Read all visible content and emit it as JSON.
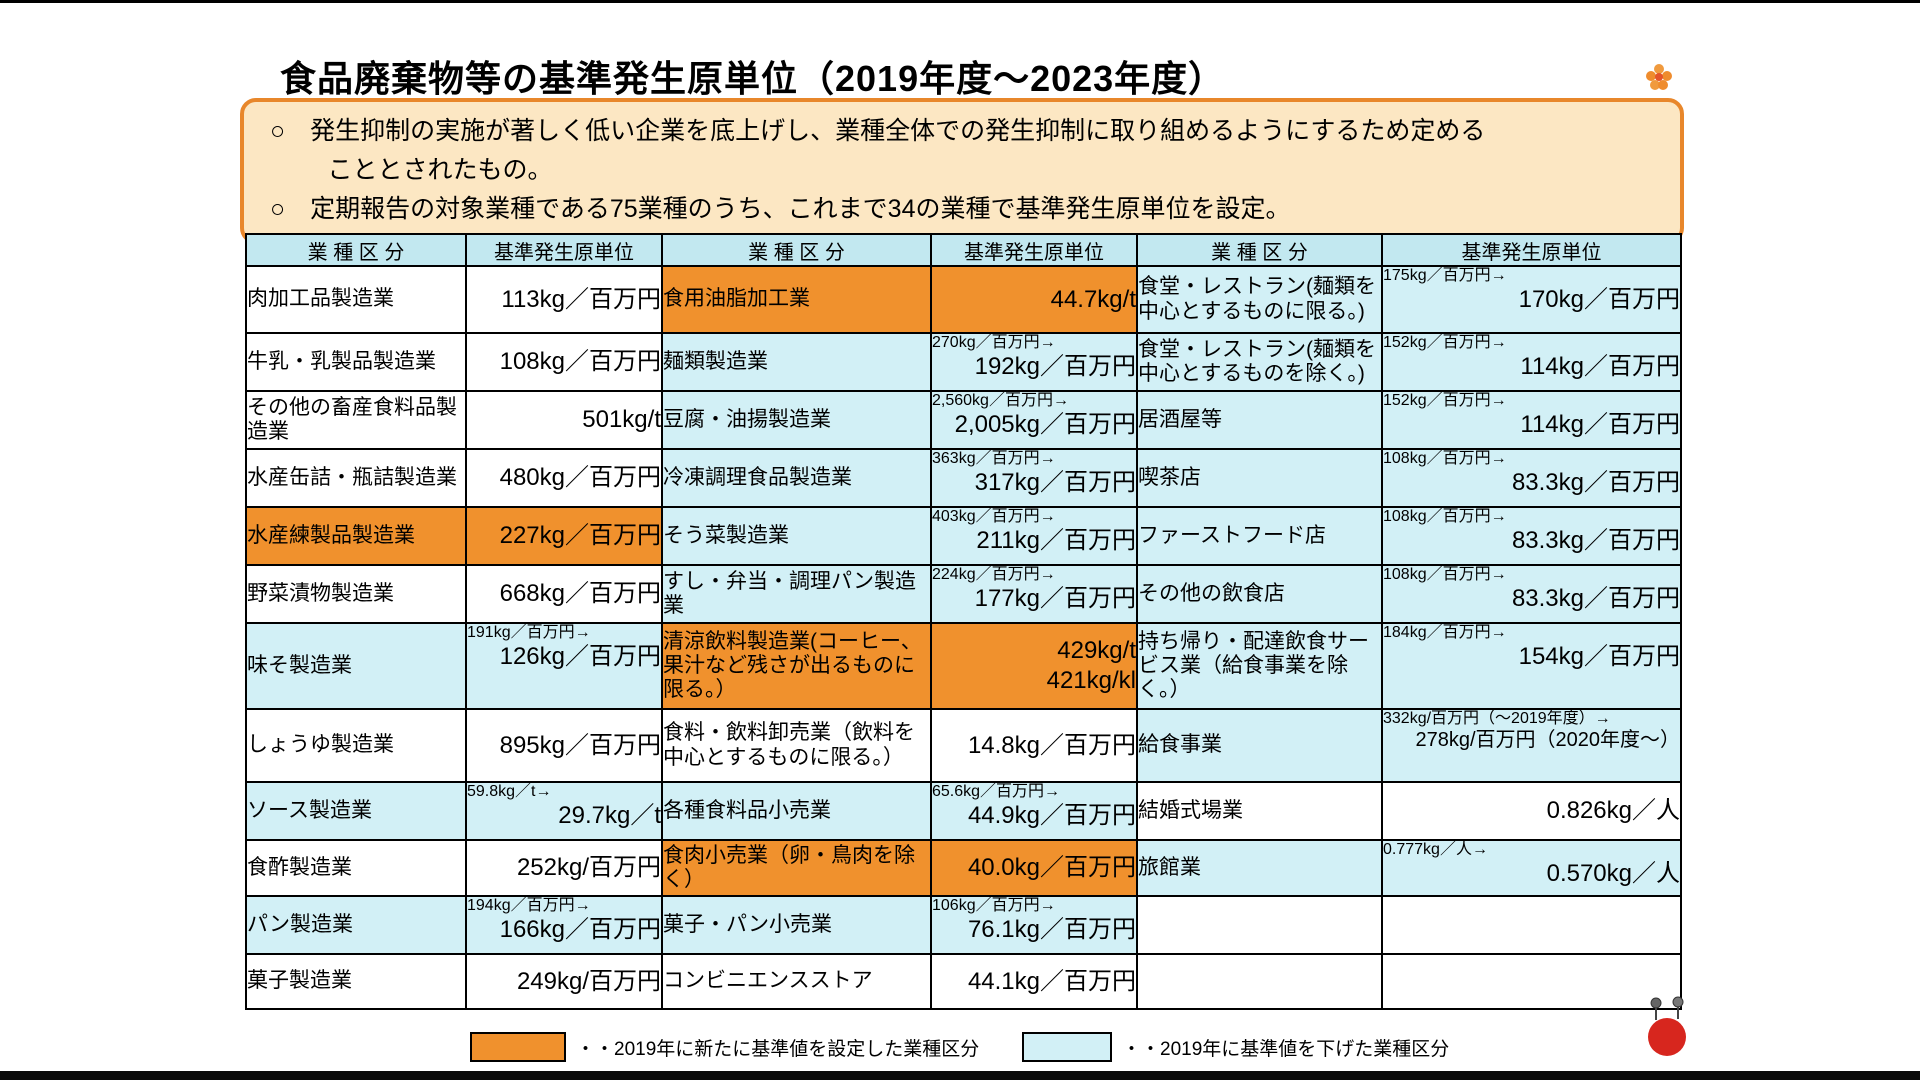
{
  "page": {
    "title": "食品廃棄物等の基準発生原単位（2019年度～2023年度）",
    "notice": {
      "line1": "○　発生抑制の実施が著しく低い企業を底上げし、業種全体での発生抑制に取り組めるようにするため定める",
      "line2": "こととされたもの。",
      "line3": "○　定期報告の対象業種である75業種のうち、これまで34の業種で基準発生原単位を設定。"
    }
  },
  "table": {
    "headers": {
      "industry": "業 種 区 分",
      "unit": "基準発生原単位"
    },
    "groups": [
      {
        "rows": [
          {
            "name": "肉加工品製造業",
            "value": "113kg／百万円",
            "type": "none"
          },
          {
            "name": "牛乳・乳製品製造業",
            "value": "108kg／百万円",
            "type": "none"
          },
          {
            "name": "その他の畜産食料品製造業",
            "value": "501kg/t",
            "type": "none"
          },
          {
            "name": "水産缶詰・瓶詰製造業",
            "value": "480kg／百万円",
            "type": "none"
          },
          {
            "name": "水産練製品製造業",
            "value": "227kg／百万円",
            "type": "new"
          },
          {
            "name": "野菜漬物製造業",
            "value": "668kg／百万円",
            "type": "none"
          },
          {
            "name": "味そ製造業",
            "prev": "191kg／百万円→",
            "value": "126kg／百万円",
            "type": "lowered"
          },
          {
            "name": "しょうゆ製造業",
            "value": "895kg／百万円",
            "type": "none"
          },
          {
            "name": "ソース製造業",
            "prev": "59.8kg／t→",
            "value": "29.7kg／t",
            "type": "lowered"
          },
          {
            "name": "食酢製造業",
            "value": "252kg/百万円",
            "type": "none"
          },
          {
            "name": "パン製造業",
            "prev": "194kg／百万円→",
            "value": "166kg／百万円",
            "type": "lowered"
          },
          {
            "name": "菓子製造業",
            "value": "249kg/百万円",
            "type": "none"
          }
        ]
      },
      {
        "rows": [
          {
            "name": "食用油脂加工業",
            "value": "44.7kg/t",
            "type": "new"
          },
          {
            "name": "麺類製造業",
            "prev": "270kg／百万円→",
            "value": "192kg／百万円",
            "type": "lowered"
          },
          {
            "name": "豆腐・油揚製造業",
            "prev": "2,560kg／百万円→",
            "value": "2,005kg／百万円",
            "type": "lowered"
          },
          {
            "name": "冷凍調理食品製造業",
            "prev": "363kg／百万円→",
            "value": "317kg／百万円",
            "type": "lowered"
          },
          {
            "name": "そう菜製造業",
            "prev": "403kg／百万円→",
            "value": "211kg／百万円",
            "type": "lowered"
          },
          {
            "name": "すし・弁当・調理パン製造業",
            "prev": "224kg／百万円→",
            "value": "177kg／百万円",
            "type": "lowered"
          },
          {
            "name": "清涼飲料製造業(コーヒー、果汁など残さが出るものに限る。）",
            "value": "429kg/t",
            "value2": "421kg/kl",
            "type": "new"
          },
          {
            "name": "食料・飲料卸売業（飲料を中心とするものに限る。）",
            "value": "14.8kg／百万円",
            "type": "none"
          },
          {
            "name": "各種食料品小売業",
            "prev": "65.6kg／百万円→",
            "value": "44.9kg／百万円",
            "type": "lowered"
          },
          {
            "name": "食肉小売業（卵・鳥肉を除く）",
            "value": "40.0kg／百万円",
            "type": "new"
          },
          {
            "name": "菓子・パン小売業",
            "prev": "106kg／百万円→",
            "value": "76.1kg／百万円",
            "type": "lowered"
          },
          {
            "name": "コンビニエンスストア",
            "value": "44.1kg／百万円",
            "type": "none"
          }
        ]
      },
      {
        "rows": [
          {
            "name": "食堂・レストラン(麺類を中心とするものに限る。)",
            "prev": "175kg／百万円→",
            "value": "170kg／百万円",
            "type": "lowered"
          },
          {
            "name": "食堂・レストラン(麺類を中心とするものを除く。)",
            "prev": "152kg／百万円→",
            "value": "114kg／百万円",
            "type": "lowered"
          },
          {
            "name": "居酒屋等",
            "prev": "152kg／百万円→",
            "value": "114kg／百万円",
            "type": "lowered"
          },
          {
            "name": "喫茶店",
            "prev": "108kg／百万円→",
            "value": "83.3kg／百万円",
            "type": "lowered"
          },
          {
            "name": "ファーストフード店",
            "prev": "108kg／百万円→",
            "value": "83.3kg／百万円",
            "type": "lowered"
          },
          {
            "name": "その他の飲食店",
            "prev": "108kg／百万円→",
            "value": "83.3kg／百万円",
            "type": "lowered"
          },
          {
            "name": "持ち帰り・配達飲食サービス業（給食事業を除く。）",
            "prev": "184kg／百万円→",
            "value": "154kg／百万円",
            "type": "lowered"
          },
          {
            "name": "給食事業",
            "prev": "332kg/百万円（～2019年度）→",
            "value": "278kg/百万円（2020年度～）",
            "type": "lowered"
          },
          {
            "name": "結婚式場業",
            "value": "0.826kg／人",
            "type": "none"
          },
          {
            "name": "旅館業",
            "prev": "0.777kg／人→",
            "value": "0.570kg／人",
            "type": "lowered"
          }
        ]
      }
    ]
  },
  "legend": {
    "new_label": "・・2019年に新たに基準値を設定した業種区分",
    "lowered_label": "・・2019年に基準値を下げた業種区分"
  },
  "colors": {
    "orange": "#f0912d",
    "cyan": "#d2f0f6",
    "header_cyan": "#c2e8f0",
    "notice_bg": "#fce7c3",
    "notice_border": "#e8872b",
    "red_circle": "#d7261e"
  }
}
